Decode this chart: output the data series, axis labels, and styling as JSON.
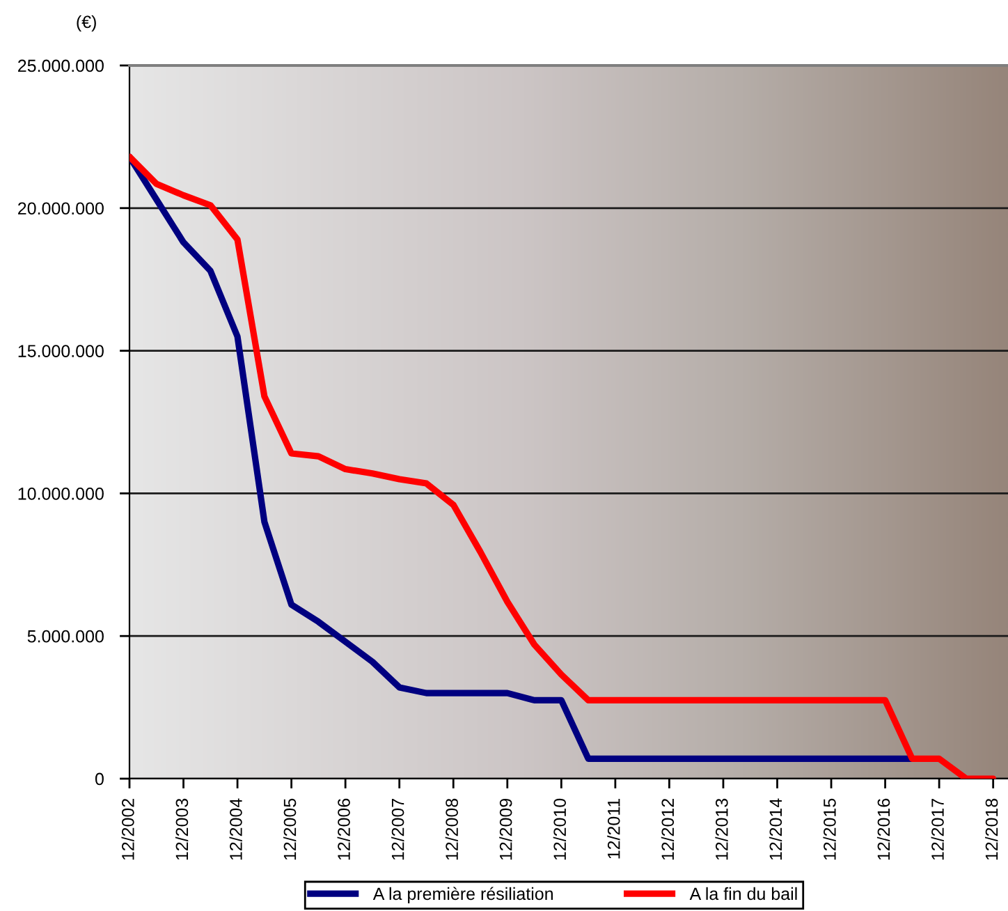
{
  "chart_data": {
    "type": "line",
    "ylabel": "(€)",
    "categories": [
      "12/2002",
      null,
      "12/2003",
      null,
      "12/2004",
      null,
      "12/2005",
      null,
      "12/2006",
      null,
      "12/2007",
      null,
      "12/2008",
      null,
      "12/2009",
      null,
      "12/2010",
      null,
      "12/2011",
      null,
      "12/2012",
      null,
      "12/2013",
      null,
      "12/2014",
      null,
      "12/2015",
      null,
      "12/2016",
      null,
      "12/2017",
      null,
      "12/2018"
    ],
    "series": [
      {
        "name": "A la première résiliation",
        "color": "#000080",
        "values": [
          21800000,
          20300000,
          18800000,
          17800000,
          15500000,
          9000000,
          6100000,
          5500000,
          4800000,
          4100000,
          3200000,
          3000000,
          3000000,
          3000000,
          3000000,
          2750000,
          2750000,
          700000,
          700000,
          700000,
          700000,
          700000,
          700000,
          700000,
          700000,
          700000,
          700000,
          700000,
          700000,
          700000,
          null,
          null,
          null
        ]
      },
      {
        "name": "A la fin du bail",
        "color": "#ff0000",
        "values": [
          21800000,
          20850000,
          20450000,
          20100000,
          18900000,
          13400000,
          11400000,
          11300000,
          10850000,
          10700000,
          10500000,
          10350000,
          9600000,
          7950000,
          6200000,
          4700000,
          3650000,
          2750000,
          2750000,
          2750000,
          2750000,
          2750000,
          2750000,
          2750000,
          2750000,
          2750000,
          2750000,
          2750000,
          2750000,
          700000,
          700000,
          0,
          0
        ]
      }
    ],
    "ylim": [
      0,
      25000000
    ],
    "yticks": [
      0,
      {
        "value": 5000000,
        "label": "5.000.000"
      },
      {
        "value": 10000000,
        "label": "10.000.000"
      },
      {
        "value": 15000000,
        "label": "15.000.000"
      },
      {
        "value": 20000000,
        "label": "20.000.000"
      },
      {
        "value": 25000000,
        "label": "25.000.000"
      }
    ],
    "grid": "y",
    "legend": "bottom"
  }
}
